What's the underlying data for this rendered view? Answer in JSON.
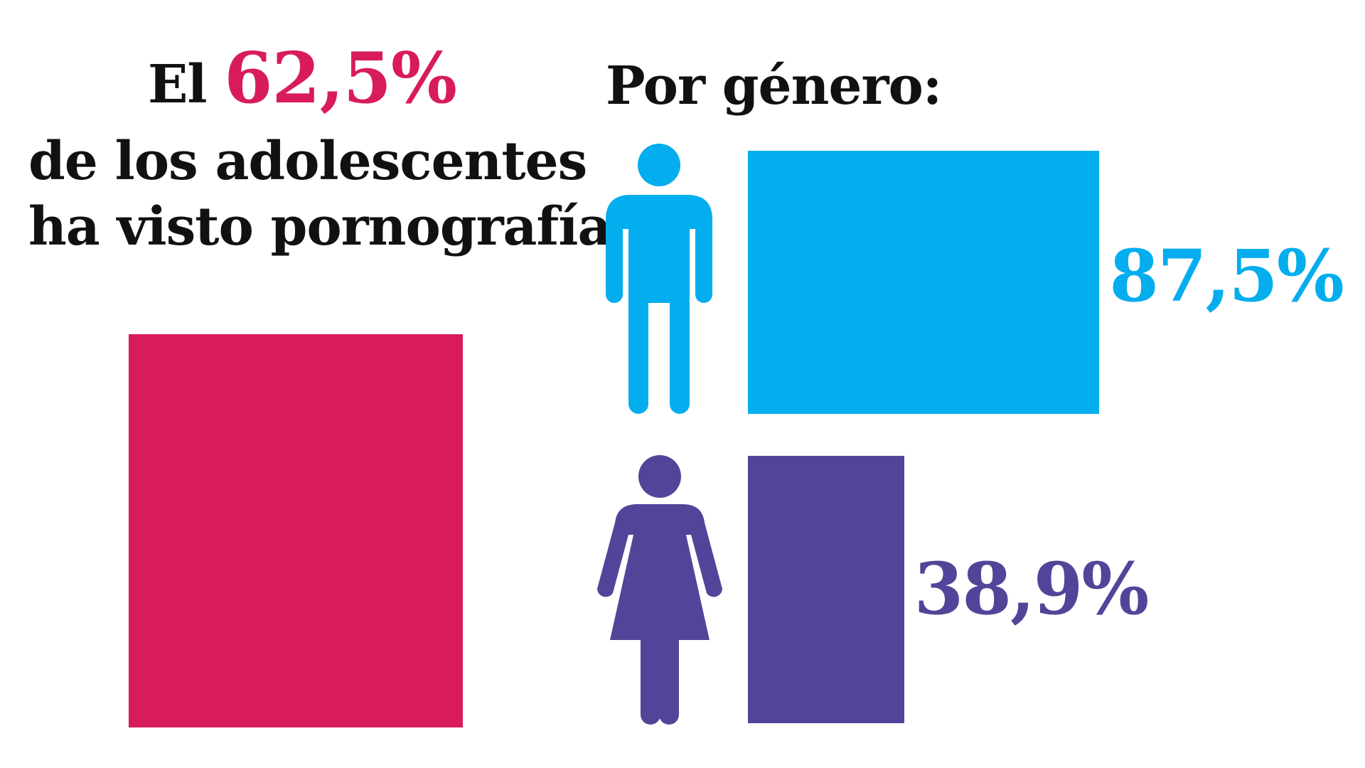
{
  "headline": {
    "prefix": "El",
    "percent": "62,5%",
    "line2": "de los adolescentes",
    "line3": "ha visto pornografía"
  },
  "gender_section": {
    "title": "Por género:"
  },
  "colors": {
    "overall": "#d81b5c",
    "male": "#03adee",
    "female": "#524599",
    "text": "#111111"
  },
  "icons": {
    "male": "male-person-icon",
    "female": "female-person-icon"
  },
  "chart_data": [
    {
      "type": "bar",
      "categories": [
        "adolescentes"
      ],
      "values": [
        62.5
      ],
      "unit": "%"
    },
    {
      "type": "bar",
      "categories": [
        "hombres",
        "mujeres"
      ],
      "values": [
        87.5,
        38.9
      ],
      "labels": [
        "87,5%",
        "38,9%"
      ],
      "unit": "%"
    }
  ]
}
